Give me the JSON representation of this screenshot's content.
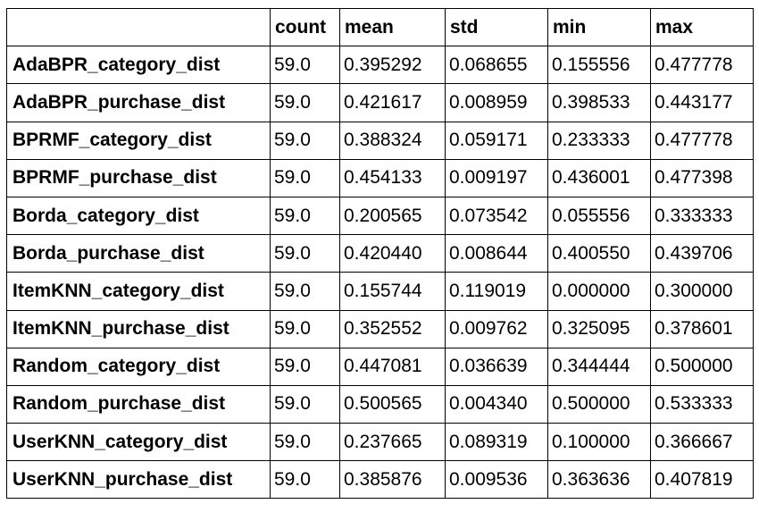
{
  "chart_data": {
    "type": "table",
    "columns": [
      "",
      "count",
      "mean",
      "std",
      "min",
      "max"
    ],
    "rows": [
      {
        "label": "AdaBPR_category_dist",
        "values": [
          "59.0",
          "0.395292",
          "0.068655",
          "0.155556",
          "0.477778"
        ]
      },
      {
        "label": "AdaBPR_purchase_dist",
        "values": [
          "59.0",
          "0.421617",
          "0.008959",
          "0.398533",
          "0.443177"
        ]
      },
      {
        "label": "BPRMF_category_dist",
        "values": [
          "59.0",
          "0.388324",
          "0.059171",
          "0.233333",
          "0.477778"
        ]
      },
      {
        "label": "BPRMF_purchase_dist",
        "values": [
          "59.0",
          "0.454133",
          "0.009197",
          "0.436001",
          "0.477398"
        ]
      },
      {
        "label": "Borda_category_dist",
        "values": [
          "59.0",
          "0.200565",
          "0.073542",
          "0.055556",
          "0.333333"
        ]
      },
      {
        "label": "Borda_purchase_dist",
        "values": [
          "59.0",
          "0.420440",
          "0.008644",
          "0.400550",
          "0.439706"
        ]
      },
      {
        "label": "ItemKNN_category_dist",
        "values": [
          "59.0",
          "0.155744",
          "0.119019",
          "0.000000",
          "0.300000"
        ]
      },
      {
        "label": "ItemKNN_purchase_dist",
        "values": [
          "59.0",
          "0.352552",
          "0.009762",
          "0.325095",
          "0.378601"
        ]
      },
      {
        "label": "Random_category_dist",
        "values": [
          "59.0",
          "0.447081",
          "0.036639",
          "0.344444",
          "0.500000"
        ]
      },
      {
        "label": "Random_purchase_dist",
        "values": [
          "59.0",
          "0.500565",
          "0.004340",
          "0.500000",
          "0.533333"
        ]
      },
      {
        "label": "UserKNN_category_dist",
        "values": [
          "59.0",
          "0.237665",
          "0.089319",
          "0.100000",
          "0.366667"
        ]
      },
      {
        "label": "UserKNN_purchase_dist",
        "values": [
          "59.0",
          "0.385876",
          "0.009536",
          "0.363636",
          "0.407819"
        ]
      }
    ]
  }
}
